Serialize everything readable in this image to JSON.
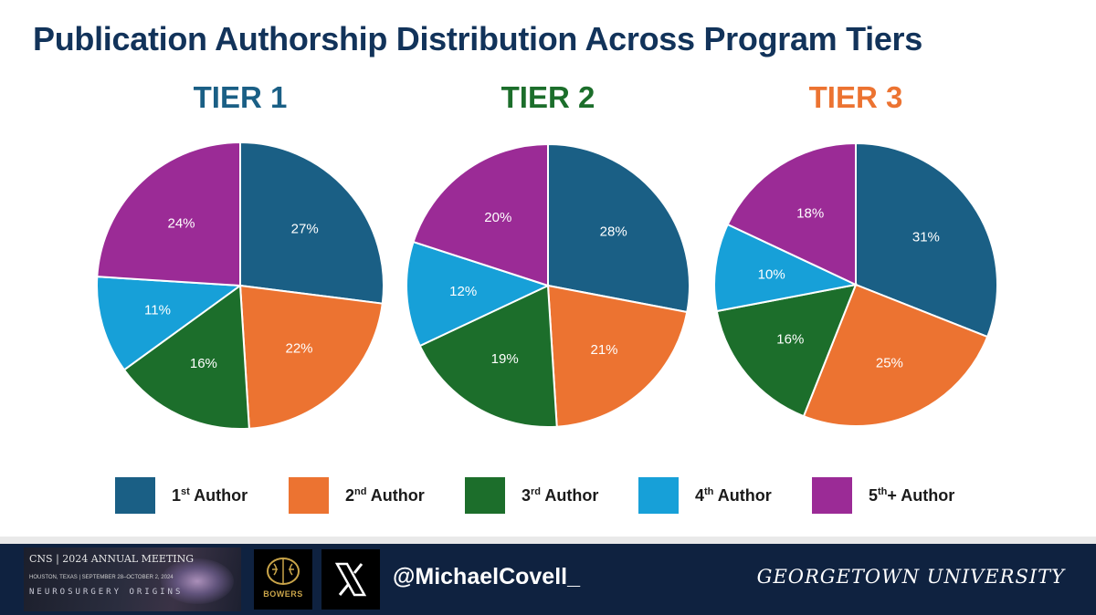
{
  "title": "Publication Authorship Distribution Across Program Tiers",
  "colors": {
    "first": "#1a5f85",
    "second": "#ec7331",
    "third": "#1c6e2b",
    "fourth": "#17a0d8",
    "fifth": "#9b2b96",
    "tier1": "#1a5f85",
    "tier2": "#1c6e2b",
    "tier3": "#ec7331"
  },
  "legend": [
    {
      "base": "1",
      "sup": "st",
      "rest": " Author",
      "color": "#1a5f85"
    },
    {
      "base": "2",
      "sup": "nd",
      "rest": " Author",
      "color": "#ec7331"
    },
    {
      "base": "3",
      "sup": "rd",
      "rest": " Author",
      "color": "#1c6e2b"
    },
    {
      "base": "4",
      "sup": "th",
      "rest": " Author",
      "color": "#17a0d8"
    },
    {
      "base": "5",
      "sup": "th",
      "rest": "+ Author",
      "color": "#9b2b96"
    }
  ],
  "chart_data": [
    {
      "type": "pie",
      "title": "TIER 1",
      "categories": [
        "1st Author",
        "2nd Author",
        "3rd Author",
        "4th Author",
        "5th+ Author"
      ],
      "values": [
        27,
        22,
        16,
        11,
        24
      ],
      "labels": [
        "27%",
        "22%",
        "16%",
        "11%",
        "24%"
      ]
    },
    {
      "type": "pie",
      "title": "TIER 2",
      "categories": [
        "1st Author",
        "2nd Author",
        "3rd Author",
        "4th Author",
        "5th+ Author"
      ],
      "values": [
        28,
        21,
        19,
        12,
        20
      ],
      "labels": [
        "28%",
        "21%",
        "19%",
        "12%",
        "20%"
      ]
    },
    {
      "type": "pie",
      "title": "TIER 3",
      "categories": [
        "1st Author",
        "2nd Author",
        "3rd Author",
        "4th Author",
        "5th+ Author"
      ],
      "values": [
        31,
        25,
        16,
        10,
        18
      ],
      "labels": [
        "31%",
        "25%",
        "16%",
        "10%",
        "18%"
      ]
    }
  ],
  "footer": {
    "cns_banner_top": "CNS | 2024 ANNUAL MEETING",
    "cns_banner_sub": "HOUSTON, TEXAS | SEPTEMBER 28–OCTOBER 2, 2024",
    "cns_banner_theme": "NEUROSURGERY ORIGINS",
    "bowers_logo_text": "BOWERS",
    "handle": "@MichaelCovell_",
    "university": "GEORGETOWN UNIVERSITY"
  }
}
